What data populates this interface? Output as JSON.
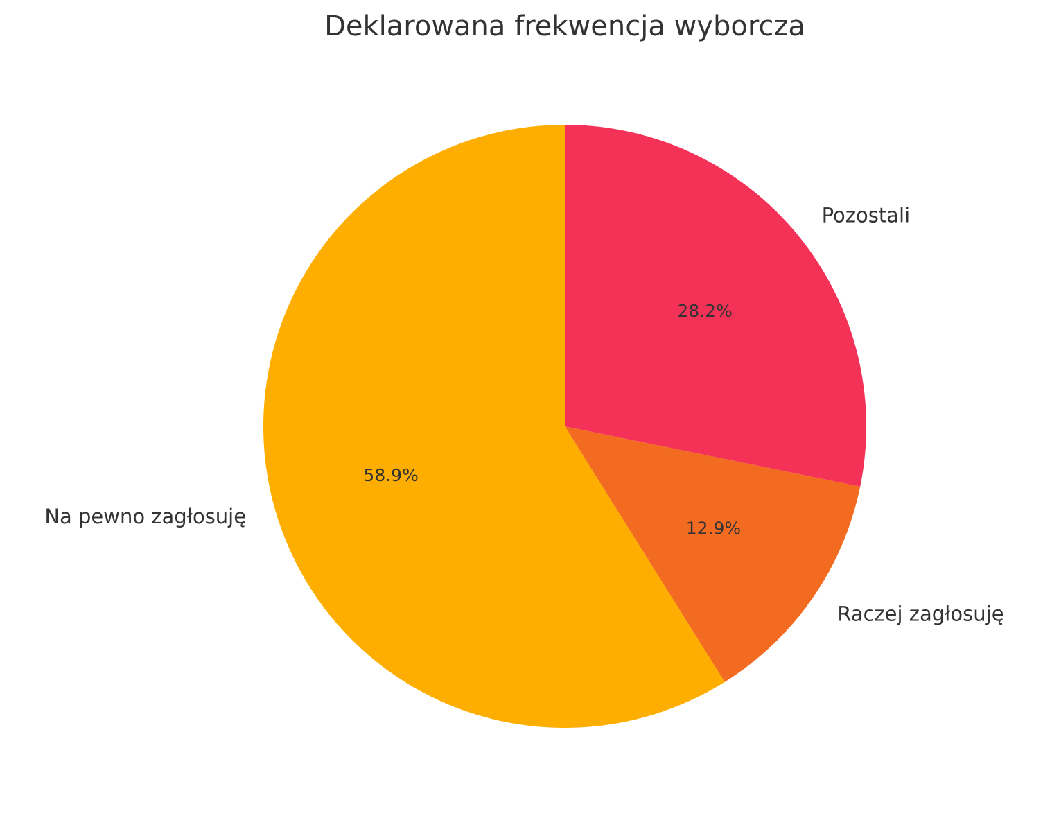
{
  "chart_data": {
    "type": "pie",
    "title": "Deklarowana frekwencja wyborcza",
    "categories": [
      "Na pewno zagłosuję",
      "Raczej zagłosuję",
      "Pozostali"
    ],
    "values": [
      58.9,
      12.9,
      28.2
    ],
    "value_labels": [
      "58.9%",
      "12.9%",
      "28.2%"
    ],
    "colors": [
      "#fdae00",
      "#f26b21",
      "#f43257"
    ]
  }
}
